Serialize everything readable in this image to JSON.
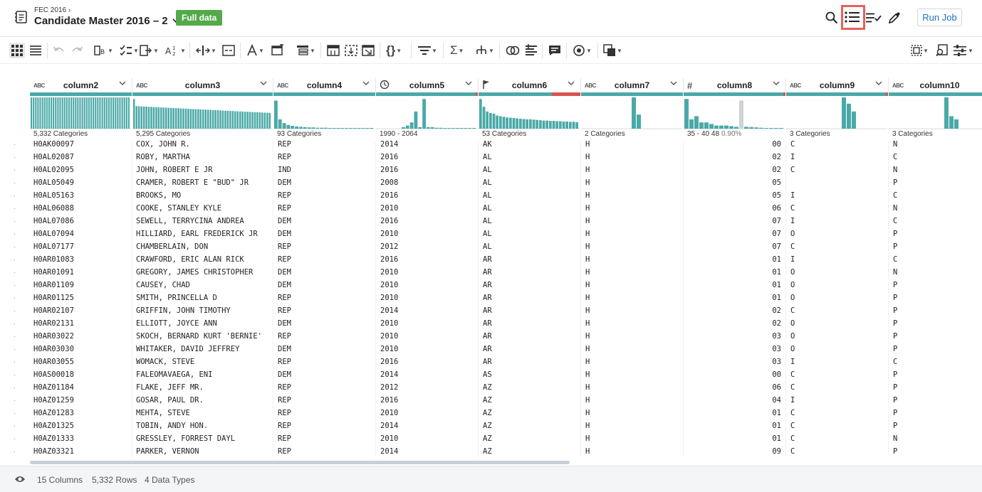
{
  "header": {
    "breadcrumb": "FEC 2016",
    "title": "Candidate Master 2016 – 2",
    "badge": "Full data",
    "run_job": "Run Job"
  },
  "columns": [
    {
      "name": "column2",
      "type": "ABC",
      "summary": "5,332 Categories"
    },
    {
      "name": "column3",
      "type": "ABC",
      "summary": "5,295 Categories"
    },
    {
      "name": "column4",
      "type": "ABC",
      "summary": "93 Categories"
    },
    {
      "name": "column5",
      "type": "clock",
      "summary": "1990 - 2064"
    },
    {
      "name": "column6",
      "type": "flag",
      "summary": "53 Categories"
    },
    {
      "name": "column7",
      "type": "ABC",
      "summary": "2 Categories"
    },
    {
      "name": "column8",
      "type": "#",
      "summary": "35 - 40  48",
      "summary_pct": "0.90%"
    },
    {
      "name": "column9",
      "type": "ABC",
      "summary": "3 Categories"
    },
    {
      "name": "column10",
      "type": "ABC",
      "summary": "3 Categories"
    }
  ],
  "rows": [
    [
      "H0AK00097",
      "COX, JOHN R.",
      "REP",
      "2014",
      "AK",
      "H",
      "00",
      "C",
      "N"
    ],
    [
      "H0AL02087",
      "ROBY, MARTHA",
      "REP",
      "2016",
      "AL",
      "H",
      "02",
      "I",
      "C"
    ],
    [
      "H0AL02095",
      "JOHN, ROBERT E JR",
      "IND",
      "2016",
      "AL",
      "H",
      "02",
      "C",
      "N"
    ],
    [
      "H0AL05049",
      "CRAMER, ROBERT E \"BUD\" JR",
      "DEM",
      "2008",
      "AL",
      "H",
      "05",
      "",
      "P"
    ],
    [
      "H0AL05163",
      "BROOKS, MO",
      "REP",
      "2016",
      "AL",
      "H",
      "05",
      "I",
      "C"
    ],
    [
      "H0AL06088",
      "COOKE, STANLEY KYLE",
      "REP",
      "2010",
      "AL",
      "H",
      "06",
      "C",
      "N"
    ],
    [
      "H0AL07086",
      "SEWELL, TERRYCINA ANDREA",
      "DEM",
      "2016",
      "AL",
      "H",
      "07",
      "I",
      "C"
    ],
    [
      "H0AL07094",
      "HILLIARD, EARL FREDERICK JR",
      "DEM",
      "2010",
      "AL",
      "H",
      "07",
      "O",
      "P"
    ],
    [
      "H0AL07177",
      "CHAMBERLAIN, DON",
      "REP",
      "2012",
      "AL",
      "H",
      "07",
      "C",
      "P"
    ],
    [
      "H0AR01083",
      "CRAWFORD, ERIC ALAN RICK",
      "REP",
      "2016",
      "AR",
      "H",
      "01",
      "I",
      "C"
    ],
    [
      "H0AR01091",
      "GREGORY, JAMES CHRISTOPHER",
      "DEM",
      "2010",
      "AR",
      "H",
      "01",
      "O",
      "N"
    ],
    [
      "H0AR01109",
      "CAUSEY, CHAD",
      "DEM",
      "2010",
      "AR",
      "H",
      "01",
      "O",
      "P"
    ],
    [
      "H0AR01125",
      "SMITH, PRINCELLA D",
      "REP",
      "2010",
      "AR",
      "H",
      "01",
      "O",
      "P"
    ],
    [
      "H0AR02107",
      "GRIFFIN, JOHN TIMOTHY",
      "REP",
      "2014",
      "AR",
      "H",
      "02",
      "C",
      "P"
    ],
    [
      "H0AR02131",
      "ELLIOTT, JOYCE ANN",
      "DEM",
      "2010",
      "AR",
      "H",
      "02",
      "O",
      "P"
    ],
    [
      "H0AR03022",
      "SKOCH, BERNARD KURT 'BERNIE'",
      "REP",
      "2010",
      "AR",
      "H",
      "03",
      "O",
      "P"
    ],
    [
      "H0AR03030",
      "WHITAKER, DAVID JEFFREY",
      "DEM",
      "2010",
      "AR",
      "H",
      "03",
      "O",
      "P"
    ],
    [
      "H0AR03055",
      "WOMACK, STEVE",
      "REP",
      "2016",
      "AR",
      "H",
      "03",
      "I",
      "C"
    ],
    [
      "H0AS00018",
      "FALEOMAVAEGA, ENI",
      "DEM",
      "2014",
      "AS",
      "H",
      "00",
      "C",
      "P"
    ],
    [
      "H0AZ01184",
      "FLAKE, JEFF MR.",
      "REP",
      "2012",
      "AZ",
      "H",
      "06",
      "C",
      "P"
    ],
    [
      "H0AZ01259",
      "GOSAR, PAUL DR.",
      "REP",
      "2016",
      "AZ",
      "H",
      "04",
      "I",
      "P"
    ],
    [
      "H0AZ01283",
      "MEHTA, STEVE",
      "REP",
      "2010",
      "AZ",
      "H",
      "01",
      "C",
      "P"
    ],
    [
      "H0AZ01325",
      "TOBIN, ANDY HON.",
      "REP",
      "2014",
      "AZ",
      "H",
      "01",
      "C",
      "P"
    ],
    [
      "H0AZ01333",
      "GRESSLEY, FORREST DAYL",
      "REP",
      "2010",
      "AZ",
      "H",
      "01",
      "C",
      "N"
    ],
    [
      "H0AZ03321",
      "PARKER, VERNON",
      "REP",
      "2014",
      "AZ",
      "H",
      "09",
      "C",
      "P"
    ]
  ],
  "footer": {
    "columns": "15 Columns",
    "rows": "5,332 Rows",
    "types": "4 Data Types"
  },
  "colors": {
    "accent": "#4aa9a7",
    "badge": "#54a949",
    "highlight": "#e4625a",
    "link": "#1e6ec0",
    "mismatch": "#d9534f"
  }
}
